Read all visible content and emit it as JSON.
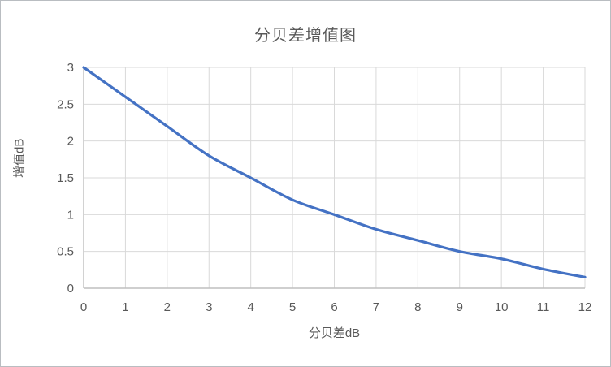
{
  "window": {
    "background": "#ffffff",
    "border_color": "#b9bdc1"
  },
  "chart_data": {
    "type": "line",
    "title": "分贝差增值图",
    "xlabel": "分贝差dB",
    "ylabel": "增值dB",
    "x": [
      0,
      1,
      2,
      3,
      4,
      5,
      6,
      7,
      8,
      9,
      10,
      11,
      12
    ],
    "series": [
      {
        "name": "增值",
        "values": [
          3.0,
          2.6,
          2.2,
          1.8,
          1.5,
          1.2,
          1.0,
          0.8,
          0.65,
          0.5,
          0.4,
          0.26,
          0.15
        ]
      }
    ],
    "xlim": [
      0,
      12
    ],
    "ylim": [
      0,
      3
    ],
    "x_tick_labels": [
      "0",
      "1",
      "2",
      "3",
      "4",
      "5",
      "6",
      "7",
      "8",
      "9",
      "10",
      "11",
      "12"
    ],
    "y_tick_labels": [
      "0",
      "0.5",
      "1",
      "1.5",
      "2",
      "2.5",
      "3"
    ],
    "grid": true,
    "legend": "none",
    "line_smooth": true,
    "colors": {
      "line": "#4472C4",
      "grid": "#D9D9D9",
      "axis": "#BFBFBF",
      "text": "#595959",
      "title": "#595959"
    }
  }
}
